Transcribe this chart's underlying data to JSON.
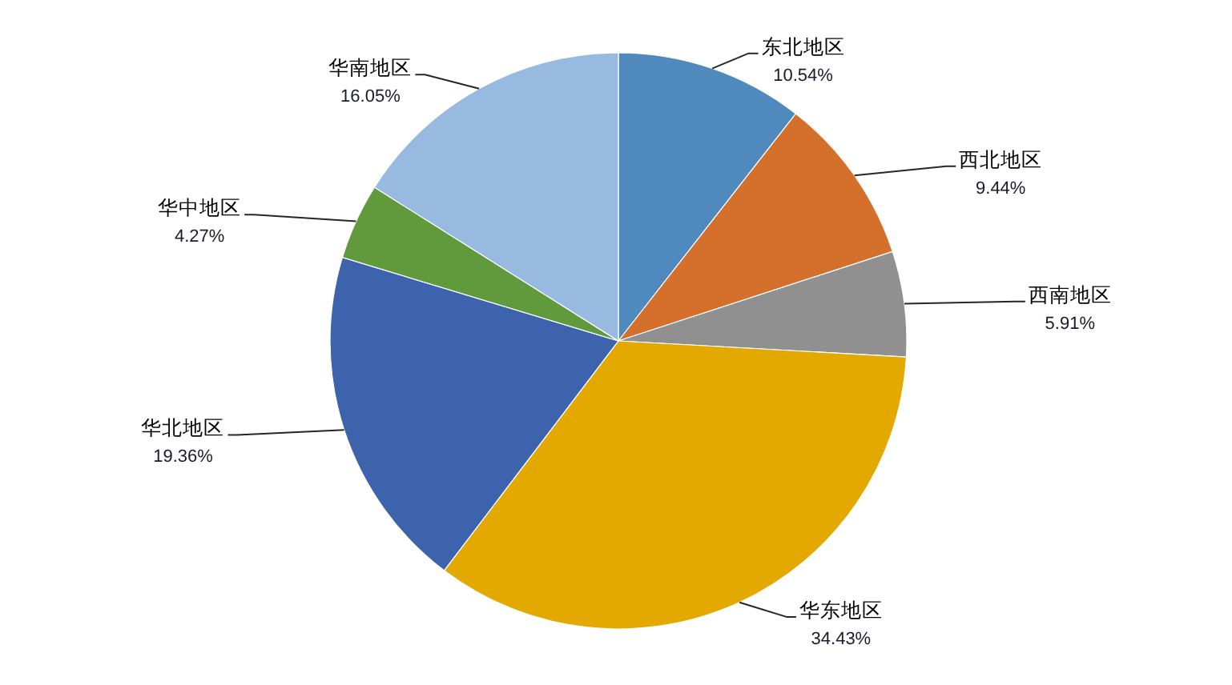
{
  "chart_data": {
    "type": "pie",
    "categories": [
      "东北地区",
      "西北地区",
      "西南地区",
      "华东地区",
      "华北地区",
      "华中地区",
      "华南地区"
    ],
    "values": [
      10.54,
      9.44,
      5.91,
      34.43,
      19.36,
      4.27,
      16.05
    ],
    "colors": [
      "#4f89bd",
      "#d4702c",
      "#909090",
      "#e3a900",
      "#3c63ac",
      "#61993d",
      "#98b9e0"
    ],
    "value_labels": [
      "10.54%",
      "9.44%",
      "5.91%",
      "34.43%",
      "19.36%",
      "4.27%",
      "16.05%"
    ]
  }
}
